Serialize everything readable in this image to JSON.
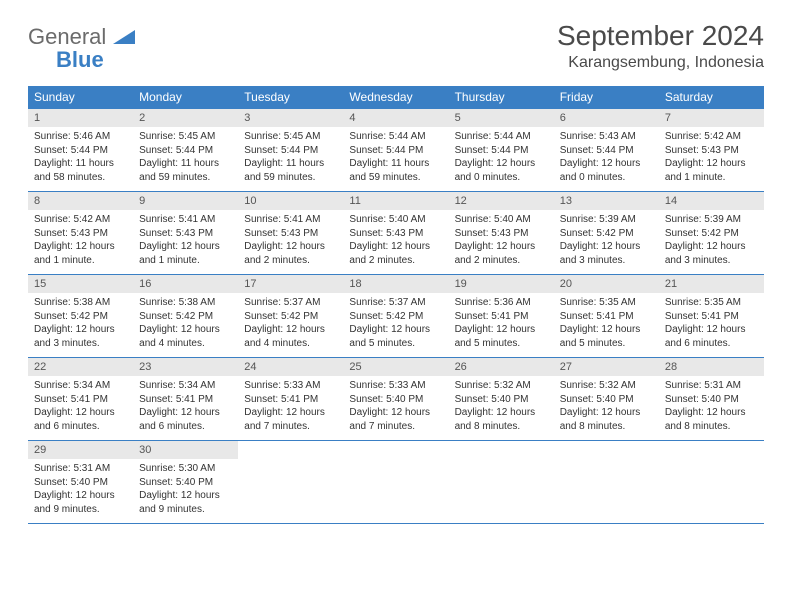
{
  "logo": {
    "word1": "General",
    "word2": "Blue"
  },
  "title": "September 2024",
  "location": "Karangsembung, Indonesia",
  "weekdays": [
    "Sunday",
    "Monday",
    "Tuesday",
    "Wednesday",
    "Thursday",
    "Friday",
    "Saturday"
  ],
  "colors": {
    "header_bg": "#3a7fc4",
    "header_text": "#ffffff",
    "daynum_bg": "#e8e8e8",
    "row_border": "#3a7fc4",
    "logo_gray": "#6b6b6b",
    "logo_blue": "#3a7fc4"
  },
  "weeks": [
    [
      {
        "num": "1",
        "sunrise": "Sunrise: 5:46 AM",
        "sunset": "Sunset: 5:44 PM",
        "daylight": "Daylight: 11 hours and 58 minutes."
      },
      {
        "num": "2",
        "sunrise": "Sunrise: 5:45 AM",
        "sunset": "Sunset: 5:44 PM",
        "daylight": "Daylight: 11 hours and 59 minutes."
      },
      {
        "num": "3",
        "sunrise": "Sunrise: 5:45 AM",
        "sunset": "Sunset: 5:44 PM",
        "daylight": "Daylight: 11 hours and 59 minutes."
      },
      {
        "num": "4",
        "sunrise": "Sunrise: 5:44 AM",
        "sunset": "Sunset: 5:44 PM",
        "daylight": "Daylight: 11 hours and 59 minutes."
      },
      {
        "num": "5",
        "sunrise": "Sunrise: 5:44 AM",
        "sunset": "Sunset: 5:44 PM",
        "daylight": "Daylight: 12 hours and 0 minutes."
      },
      {
        "num": "6",
        "sunrise": "Sunrise: 5:43 AM",
        "sunset": "Sunset: 5:44 PM",
        "daylight": "Daylight: 12 hours and 0 minutes."
      },
      {
        "num": "7",
        "sunrise": "Sunrise: 5:42 AM",
        "sunset": "Sunset: 5:43 PM",
        "daylight": "Daylight: 12 hours and 1 minute."
      }
    ],
    [
      {
        "num": "8",
        "sunrise": "Sunrise: 5:42 AM",
        "sunset": "Sunset: 5:43 PM",
        "daylight": "Daylight: 12 hours and 1 minute."
      },
      {
        "num": "9",
        "sunrise": "Sunrise: 5:41 AM",
        "sunset": "Sunset: 5:43 PM",
        "daylight": "Daylight: 12 hours and 1 minute."
      },
      {
        "num": "10",
        "sunrise": "Sunrise: 5:41 AM",
        "sunset": "Sunset: 5:43 PM",
        "daylight": "Daylight: 12 hours and 2 minutes."
      },
      {
        "num": "11",
        "sunrise": "Sunrise: 5:40 AM",
        "sunset": "Sunset: 5:43 PM",
        "daylight": "Daylight: 12 hours and 2 minutes."
      },
      {
        "num": "12",
        "sunrise": "Sunrise: 5:40 AM",
        "sunset": "Sunset: 5:43 PM",
        "daylight": "Daylight: 12 hours and 2 minutes."
      },
      {
        "num": "13",
        "sunrise": "Sunrise: 5:39 AM",
        "sunset": "Sunset: 5:42 PM",
        "daylight": "Daylight: 12 hours and 3 minutes."
      },
      {
        "num": "14",
        "sunrise": "Sunrise: 5:39 AM",
        "sunset": "Sunset: 5:42 PM",
        "daylight": "Daylight: 12 hours and 3 minutes."
      }
    ],
    [
      {
        "num": "15",
        "sunrise": "Sunrise: 5:38 AM",
        "sunset": "Sunset: 5:42 PM",
        "daylight": "Daylight: 12 hours and 3 minutes."
      },
      {
        "num": "16",
        "sunrise": "Sunrise: 5:38 AM",
        "sunset": "Sunset: 5:42 PM",
        "daylight": "Daylight: 12 hours and 4 minutes."
      },
      {
        "num": "17",
        "sunrise": "Sunrise: 5:37 AM",
        "sunset": "Sunset: 5:42 PM",
        "daylight": "Daylight: 12 hours and 4 minutes."
      },
      {
        "num": "18",
        "sunrise": "Sunrise: 5:37 AM",
        "sunset": "Sunset: 5:42 PM",
        "daylight": "Daylight: 12 hours and 5 minutes."
      },
      {
        "num": "19",
        "sunrise": "Sunrise: 5:36 AM",
        "sunset": "Sunset: 5:41 PM",
        "daylight": "Daylight: 12 hours and 5 minutes."
      },
      {
        "num": "20",
        "sunrise": "Sunrise: 5:35 AM",
        "sunset": "Sunset: 5:41 PM",
        "daylight": "Daylight: 12 hours and 5 minutes."
      },
      {
        "num": "21",
        "sunrise": "Sunrise: 5:35 AM",
        "sunset": "Sunset: 5:41 PM",
        "daylight": "Daylight: 12 hours and 6 minutes."
      }
    ],
    [
      {
        "num": "22",
        "sunrise": "Sunrise: 5:34 AM",
        "sunset": "Sunset: 5:41 PM",
        "daylight": "Daylight: 12 hours and 6 minutes."
      },
      {
        "num": "23",
        "sunrise": "Sunrise: 5:34 AM",
        "sunset": "Sunset: 5:41 PM",
        "daylight": "Daylight: 12 hours and 6 minutes."
      },
      {
        "num": "24",
        "sunrise": "Sunrise: 5:33 AM",
        "sunset": "Sunset: 5:41 PM",
        "daylight": "Daylight: 12 hours and 7 minutes."
      },
      {
        "num": "25",
        "sunrise": "Sunrise: 5:33 AM",
        "sunset": "Sunset: 5:40 PM",
        "daylight": "Daylight: 12 hours and 7 minutes."
      },
      {
        "num": "26",
        "sunrise": "Sunrise: 5:32 AM",
        "sunset": "Sunset: 5:40 PM",
        "daylight": "Daylight: 12 hours and 8 minutes."
      },
      {
        "num": "27",
        "sunrise": "Sunrise: 5:32 AM",
        "sunset": "Sunset: 5:40 PM",
        "daylight": "Daylight: 12 hours and 8 minutes."
      },
      {
        "num": "28",
        "sunrise": "Sunrise: 5:31 AM",
        "sunset": "Sunset: 5:40 PM",
        "daylight": "Daylight: 12 hours and 8 minutes."
      }
    ],
    [
      {
        "num": "29",
        "sunrise": "Sunrise: 5:31 AM",
        "sunset": "Sunset: 5:40 PM",
        "daylight": "Daylight: 12 hours and 9 minutes."
      },
      {
        "num": "30",
        "sunrise": "Sunrise: 5:30 AM",
        "sunset": "Sunset: 5:40 PM",
        "daylight": "Daylight: 12 hours and 9 minutes."
      },
      null,
      null,
      null,
      null,
      null
    ]
  ]
}
